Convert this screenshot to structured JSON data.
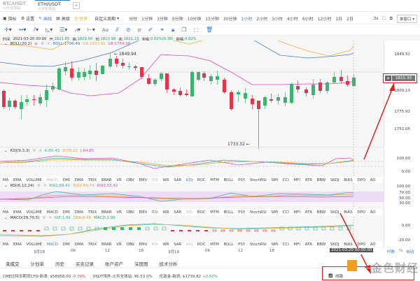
{
  "tabs": [
    {
      "label": "BTC/USDT",
      "sub": "火币全球站"
    },
    {
      "label": "ETH/USDT",
      "sub": "火币全球站"
    }
  ],
  "tab_add": "+",
  "toolbar": {
    "indicators": "指标",
    "settings": "设置",
    "draw": "画线",
    "advanced": "高级",
    "sound": "铃声",
    "custom_period": "自定义周期",
    "periods": [
      "分时",
      "1分钟",
      "3分钟",
      "5分钟",
      "10分钟",
      "15分钟",
      "30分钟",
      "1小时",
      "2小时",
      "3小时",
      "4小时",
      "6小时",
      "12小时",
      "1日",
      "2日"
    ],
    "active_period": "1小时",
    "refresh": "3s",
    "window_mode": "单窗口"
  },
  "drawing_tools": [
    "crosshair",
    "horizontal-line",
    "ray",
    "angle",
    "parallel",
    "measure",
    "bracket",
    "text",
    "fib",
    "pattern",
    "pencil",
    "eraser",
    "link",
    "lock",
    "copy",
    "screenshot",
    "delete"
  ],
  "info": {
    "time_label": "时间",
    "time": "2021-03-20 00:00",
    "open_label": "开:",
    "open": "1821.85",
    "high_label": "高:",
    "high": "1829.00",
    "low_label": "低:",
    "low": "1813.98",
    "close_label": "收:",
    "close": "1822.23",
    "change_label": "涨幅:",
    "change": "0.02%(0.38)",
    "amp_label": "振幅:",
    "amp": "0.82%"
  },
  "boll": {
    "name": "BOLL(20,2)",
    "mid": "BOLL:1796.49",
    "ub": "UB:1833.01",
    "lb": "LB:1759.98"
  },
  "main_annotations": {
    "high": "1849.94",
    "low": "1733.32"
  },
  "price_axis": [
    "1849.52",
    "1800.13",
    "1775.92",
    "1752.05"
  ],
  "current_price": "1815.30",
  "kdj": {
    "name": "KDJ(9,3,3)",
    "k": "K:80.43",
    "d": "D:78.22",
    "j": "J:84.85",
    "axis": [
      "100.00",
      "0.00"
    ]
  },
  "rsi": {
    "name": "RSI(6,12,24)",
    "r1": "RSI1:68.41",
    "r2": "RSI2:60.74",
    "r3": "RSI3:55.42",
    "axis": [
      "100.00",
      "70.00",
      "50.00",
      "30.00"
    ]
  },
  "macd": {
    "name": "MACD(29,70,5)",
    "dif": "DIF:1.93",
    "dea": "DEA:0.48",
    "macd": "MACD:2.90",
    "axis": [
      "0.00",
      "-20.00"
    ]
  },
  "indicator_list": [
    "MA",
    "EMA",
    "VOLUME",
    "MACD",
    "DMI",
    "DMA",
    "TRIX",
    "BRAR",
    "VR",
    "OBV",
    "EMV",
    "RSI",
    "WR",
    "SAR",
    "KDJ",
    "ROC",
    "MTM",
    "BOLL",
    "PSY",
    "StochRSI",
    "SMI",
    "CCI",
    "MFI",
    "ATR",
    "BBW",
    "SKDJ",
    "BIAS",
    "DPO",
    "AO"
  ],
  "time_axis": [
    "3月18",
    "06",
    "12",
    "18",
    "3月19",
    "06",
    "12",
    "18"
  ],
  "cursor_time": "2021-03-20 00:00:00",
  "axis_modes": [
    "时数",
    "%",
    "自动"
  ],
  "bottom_tabs": [
    "未成交",
    "计划单",
    "历史",
    "买卖记录",
    "账户资产",
    "深度图",
    "技术分析"
  ],
  "ticker": [
    {
      "label": "CME比特币期货CFD-新浪:",
      "value": "$58958.00",
      "change": "-0.70%",
      "dir": "down"
    },
    {
      "label": "USDT场外-火币全球站:",
      "value": "¥6.53",
      "change": "0%",
      "dir": "flat"
    },
    {
      "label": "伦敦金-新浪:",
      "value": "$1739.82",
      "change": "+0.50%",
      "dir": "up"
    }
  ],
  "status": "线路",
  "watermark": "金色财经",
  "colors": {
    "up": "#26a269",
    "down": "#e03e3e",
    "accent": "#3a7bd5",
    "ub": "#f0b030",
    "lb": "#d04cc0",
    "mid": "#4a78d0"
  }
}
